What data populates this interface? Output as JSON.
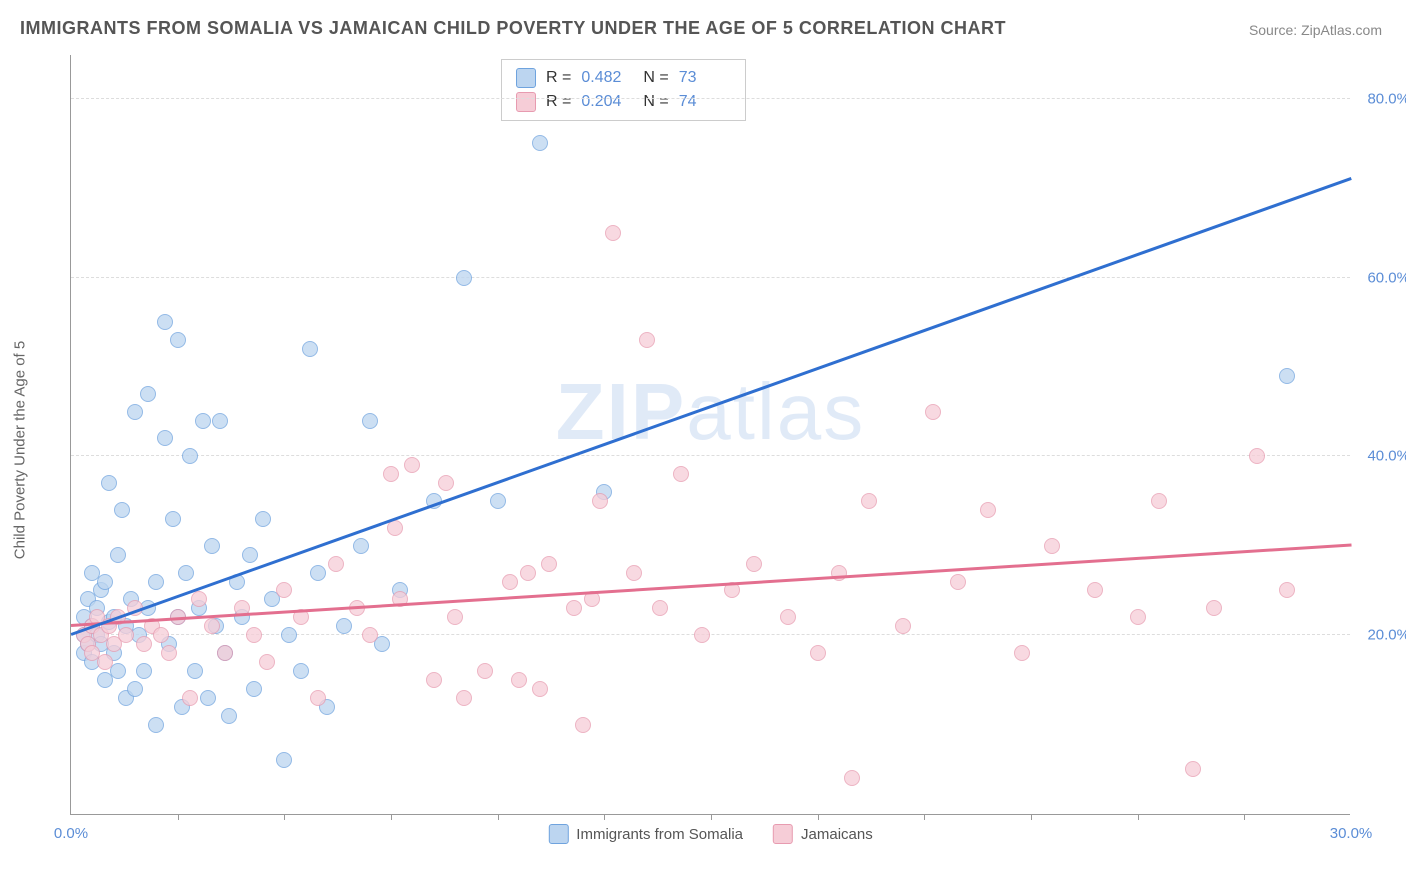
{
  "title": "IMMIGRANTS FROM SOMALIA VS JAMAICAN CHILD POVERTY UNDER THE AGE OF 5 CORRELATION CHART",
  "source": "Source: ZipAtlas.com",
  "ylabel": "Child Poverty Under the Age of 5",
  "watermark_a": "ZIP",
  "watermark_b": "atlas",
  "colors": {
    "series1_fill": "#bcd5f0",
    "series1_stroke": "#6fa3de",
    "series1_line": "#2f6fd0",
    "series2_fill": "#f6cdd7",
    "series2_stroke": "#e79bb0",
    "series2_line": "#e36f8f",
    "tick_label": "#5b8dd6",
    "grid": "#dddddd",
    "axis": "#999999"
  },
  "xlim": [
    0,
    30
  ],
  "ylim": [
    0,
    85
  ],
  "yticks": [
    {
      "v": 20,
      "label": "20.0%"
    },
    {
      "v": 40,
      "label": "40.0%"
    },
    {
      "v": 60,
      "label": "60.0%"
    },
    {
      "v": 80,
      "label": "80.0%"
    }
  ],
  "xtick_positions": [
    2.5,
    5,
    7.5,
    10,
    12.5,
    15,
    17.5,
    20,
    22.5,
    25,
    27.5
  ],
  "xaxis_labels": [
    {
      "v": 0,
      "label": "0.0%"
    },
    {
      "v": 30,
      "label": "30.0%"
    }
  ],
  "stats": [
    {
      "swatch": "series1",
      "R": "0.482",
      "N": "73"
    },
    {
      "swatch": "series2",
      "R": "0.204",
      "N": "74"
    }
  ],
  "legend": [
    {
      "swatch": "series1",
      "label": "Immigrants from Somalia"
    },
    {
      "swatch": "series2",
      "label": "Jamaicans"
    }
  ],
  "trend_lines": {
    "series1": {
      "x1": 0,
      "y1": 20,
      "x2": 30,
      "y2": 71
    },
    "series2": {
      "x1": 0,
      "y1": 21,
      "x2": 30,
      "y2": 30
    }
  },
  "series1_points": [
    [
      0.3,
      20
    ],
    [
      0.3,
      22
    ],
    [
      0.3,
      18
    ],
    [
      0.4,
      24
    ],
    [
      0.4,
      19
    ],
    [
      0.5,
      21
    ],
    [
      0.5,
      17
    ],
    [
      0.5,
      27
    ],
    [
      0.6,
      20
    ],
    [
      0.6,
      23
    ],
    [
      0.7,
      25
    ],
    [
      0.7,
      19
    ],
    [
      0.8,
      26
    ],
    [
      0.8,
      15
    ],
    [
      0.9,
      21.5
    ],
    [
      0.9,
      37
    ],
    [
      1.0,
      22
    ],
    [
      1.0,
      18
    ],
    [
      1.1,
      29
    ],
    [
      1.1,
      16
    ],
    [
      1.2,
      34
    ],
    [
      1.3,
      21
    ],
    [
      1.3,
      13
    ],
    [
      1.4,
      24
    ],
    [
      1.5,
      14
    ],
    [
      1.5,
      45
    ],
    [
      1.6,
      20
    ],
    [
      1.7,
      16
    ],
    [
      1.8,
      47
    ],
    [
      1.8,
      23
    ],
    [
      2.0,
      26
    ],
    [
      2.0,
      10
    ],
    [
      2.2,
      55
    ],
    [
      2.2,
      42
    ],
    [
      2.3,
      19
    ],
    [
      2.4,
      33
    ],
    [
      2.5,
      53
    ],
    [
      2.5,
      22
    ],
    [
      2.6,
      12
    ],
    [
      2.7,
      27
    ],
    [
      2.8,
      40
    ],
    [
      2.9,
      16
    ],
    [
      3.0,
      23
    ],
    [
      3.1,
      44
    ],
    [
      3.2,
      13
    ],
    [
      3.3,
      30
    ],
    [
      3.4,
      21
    ],
    [
      3.5,
      44
    ],
    [
      3.6,
      18
    ],
    [
      3.7,
      11
    ],
    [
      3.9,
      26
    ],
    [
      4.0,
      22
    ],
    [
      4.2,
      29
    ],
    [
      4.3,
      14
    ],
    [
      4.5,
      33
    ],
    [
      4.7,
      24
    ],
    [
      5.0,
      6
    ],
    [
      5.1,
      20
    ],
    [
      5.4,
      16
    ],
    [
      5.6,
      52
    ],
    [
      5.8,
      27
    ],
    [
      6.0,
      12
    ],
    [
      6.4,
      21
    ],
    [
      6.8,
      30
    ],
    [
      7.0,
      44
    ],
    [
      7.3,
      19
    ],
    [
      7.7,
      25
    ],
    [
      8.5,
      35
    ],
    [
      9.2,
      60
    ],
    [
      10.0,
      35
    ],
    [
      11.0,
      75
    ],
    [
      12.5,
      36
    ],
    [
      28.5,
      49
    ]
  ],
  "series2_points": [
    [
      0.3,
      20
    ],
    [
      0.4,
      19
    ],
    [
      0.5,
      21
    ],
    [
      0.5,
      18
    ],
    [
      0.6,
      22
    ],
    [
      0.7,
      20
    ],
    [
      0.8,
      17
    ],
    [
      0.9,
      21
    ],
    [
      1.0,
      19
    ],
    [
      1.1,
      22
    ],
    [
      1.3,
      20
    ],
    [
      1.5,
      23
    ],
    [
      1.7,
      19
    ],
    [
      1.9,
      21
    ],
    [
      2.1,
      20
    ],
    [
      2.3,
      18
    ],
    [
      2.5,
      22
    ],
    [
      2.8,
      13
    ],
    [
      3.0,
      24
    ],
    [
      3.3,
      21
    ],
    [
      3.6,
      18
    ],
    [
      4.0,
      23
    ],
    [
      4.3,
      20
    ],
    [
      4.6,
      17
    ],
    [
      5.0,
      25
    ],
    [
      5.4,
      22
    ],
    [
      5.8,
      13
    ],
    [
      6.2,
      28
    ],
    [
      6.7,
      23
    ],
    [
      7.0,
      20
    ],
    [
      7.5,
      38
    ],
    [
      7.6,
      32
    ],
    [
      7.7,
      24
    ],
    [
      8.0,
      39
    ],
    [
      8.5,
      15
    ],
    [
      8.8,
      37
    ],
    [
      9.0,
      22
    ],
    [
      9.2,
      13
    ],
    [
      9.7,
      16
    ],
    [
      10.3,
      26
    ],
    [
      10.5,
      15
    ],
    [
      10.7,
      27
    ],
    [
      11.0,
      14
    ],
    [
      11.2,
      28
    ],
    [
      11.8,
      23
    ],
    [
      12.0,
      10
    ],
    [
      12.2,
      24
    ],
    [
      12.4,
      35
    ],
    [
      12.7,
      65
    ],
    [
      13.2,
      27
    ],
    [
      13.5,
      53
    ],
    [
      13.8,
      23
    ],
    [
      14.3,
      38
    ],
    [
      14.8,
      20
    ],
    [
      15.5,
      25
    ],
    [
      16.0,
      28
    ],
    [
      16.8,
      22
    ],
    [
      17.5,
      18
    ],
    [
      18.0,
      27
    ],
    [
      18.3,
      4
    ],
    [
      18.7,
      35
    ],
    [
      19.5,
      21
    ],
    [
      20.2,
      45
    ],
    [
      20.8,
      26
    ],
    [
      21.5,
      34
    ],
    [
      22.3,
      18
    ],
    [
      23.0,
      30
    ],
    [
      24.0,
      25
    ],
    [
      25.0,
      22
    ],
    [
      25.5,
      35
    ],
    [
      26.3,
      5
    ],
    [
      26.8,
      23
    ],
    [
      27.8,
      40
    ],
    [
      28.5,
      25
    ]
  ]
}
